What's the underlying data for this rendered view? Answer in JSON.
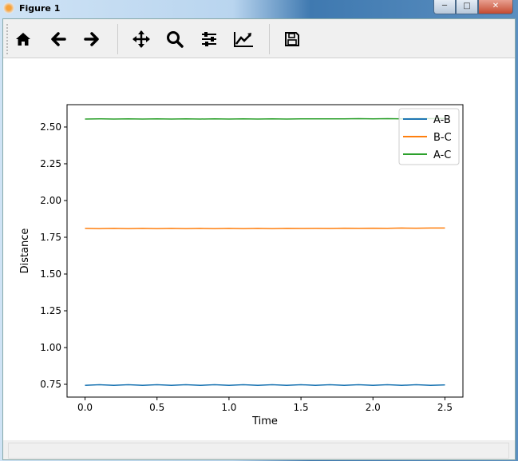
{
  "window": {
    "title": "Figure 1",
    "controls": [
      "minimize",
      "maximize",
      "close"
    ]
  },
  "toolbar": {
    "buttons": [
      {
        "icon": "home-icon"
      },
      {
        "icon": "back-arrow-icon"
      },
      {
        "icon": "forward-arrow-icon"
      },
      {
        "icon": "pan-icon"
      },
      {
        "icon": "zoom-icon"
      },
      {
        "icon": "configure-subplots-icon"
      },
      {
        "icon": "edit-axis-icon"
      },
      {
        "icon": "save-icon"
      }
    ]
  },
  "chart_data": {
    "type": "line",
    "title": "",
    "xlabel": "Time",
    "ylabel": "Distance",
    "xlim": [
      -0.125,
      2.625
    ],
    "ylim": [
      0.663,
      2.652
    ],
    "xticks": [
      "0.0",
      "0.5",
      "1.0",
      "1.5",
      "2.0",
      "2.5"
    ],
    "yticks": [
      "0.75",
      "1.00",
      "1.25",
      "1.50",
      "1.75",
      "2.00",
      "2.25",
      "2.50"
    ],
    "grid": false,
    "legend_position": "top-right",
    "x": [
      0.0,
      0.1,
      0.2,
      0.3,
      0.4,
      0.5,
      0.6,
      0.7,
      0.8,
      0.9,
      1.0,
      1.1,
      1.2,
      1.3,
      1.4,
      1.5,
      1.6,
      1.7,
      1.8,
      1.9,
      2.0,
      2.1,
      2.2,
      2.3,
      2.4,
      2.5
    ],
    "series": [
      {
        "name": "A-B",
        "color": "#1f77b4",
        "values": [
          0.743,
          0.747,
          0.743,
          0.747,
          0.743,
          0.747,
          0.743,
          0.747,
          0.743,
          0.747,
          0.743,
          0.747,
          0.743,
          0.747,
          0.743,
          0.747,
          0.743,
          0.747,
          0.743,
          0.747,
          0.743,
          0.747,
          0.743,
          0.747,
          0.743,
          0.746
        ]
      },
      {
        "name": "B-C",
        "color": "#ff7f0e",
        "values": [
          1.811,
          1.809,
          1.811,
          1.809,
          1.811,
          1.809,
          1.811,
          1.809,
          1.811,
          1.809,
          1.811,
          1.809,
          1.811,
          1.809,
          1.811,
          1.81,
          1.811,
          1.81,
          1.812,
          1.811,
          1.812,
          1.811,
          1.813,
          1.812,
          1.813,
          1.813
        ]
      },
      {
        "name": "A-C",
        "color": "#2ca02c",
        "values": [
          2.554,
          2.556,
          2.554,
          2.556,
          2.554,
          2.556,
          2.554,
          2.556,
          2.554,
          2.556,
          2.554,
          2.556,
          2.554,
          2.556,
          2.554,
          2.556,
          2.555,
          2.556,
          2.555,
          2.557,
          2.556,
          2.557,
          2.556,
          2.558,
          2.557,
          2.558
        ]
      }
    ]
  }
}
